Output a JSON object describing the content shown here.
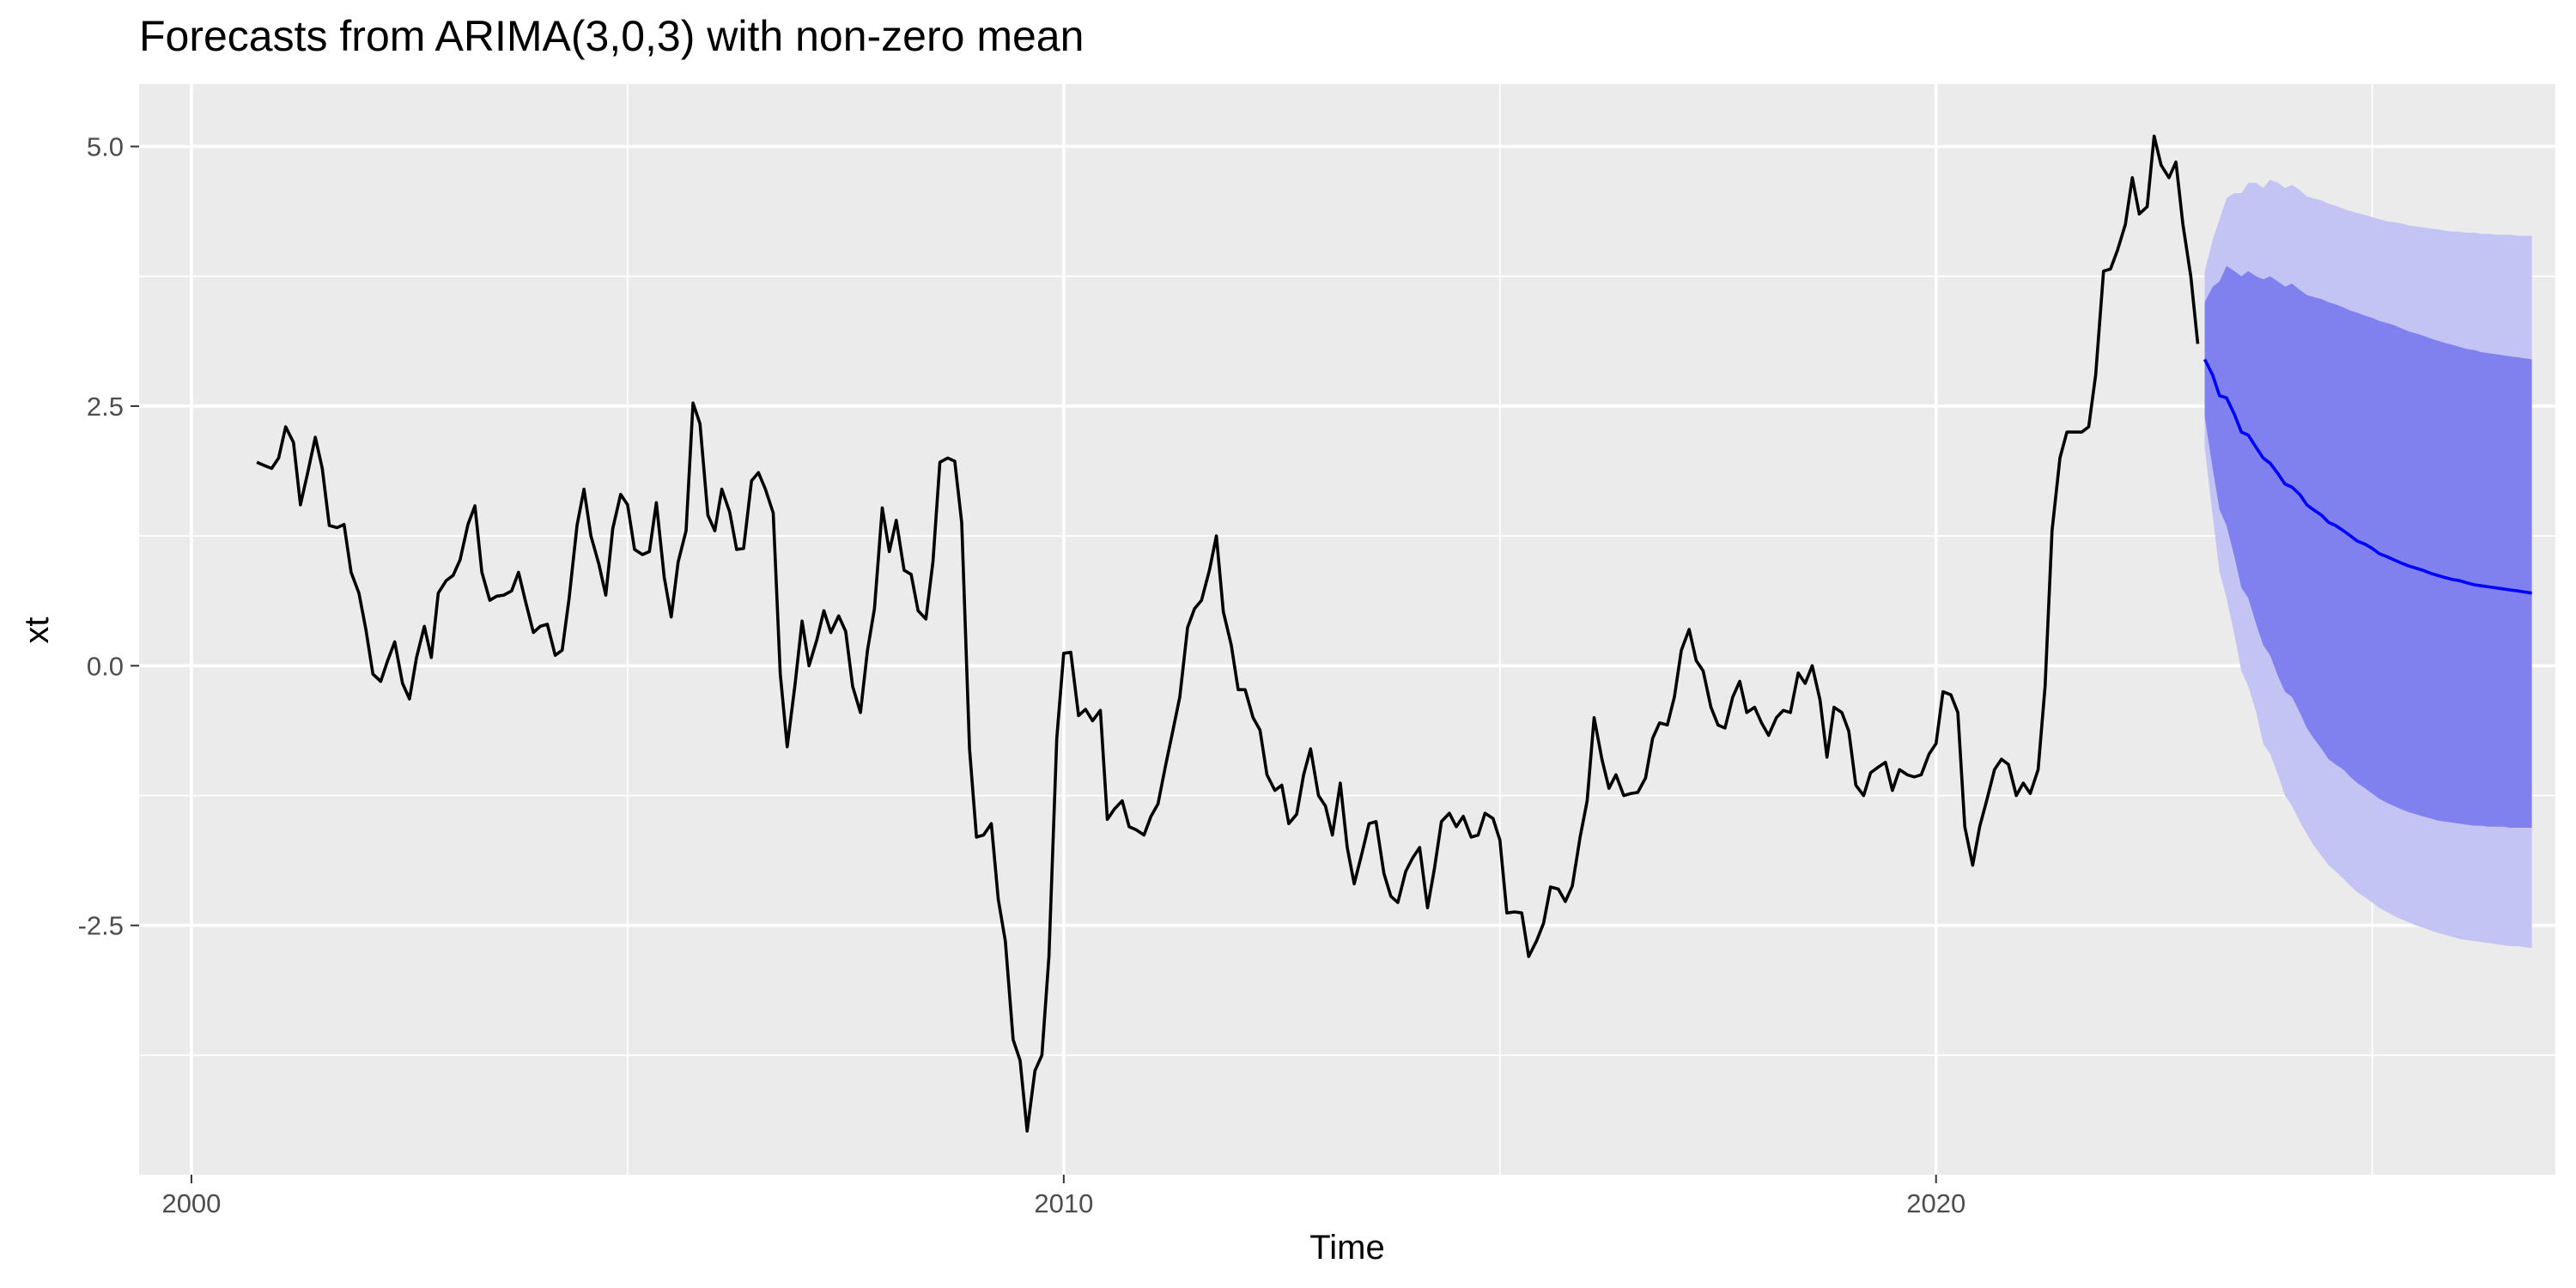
{
  "chart_data": {
    "type": "line",
    "title": "Forecasts from ARIMA(3,0,3) with non-zero mean",
    "xlabel": "Time",
    "ylabel": "xt",
    "xlim": [
      1999.4,
      2027.1
    ],
    "ylim": [
      -4.9,
      5.6
    ],
    "x_ticks": [
      2000,
      2010,
      2020
    ],
    "x_tick_labels": [
      "2000",
      "2010",
      "2020"
    ],
    "y_ticks": [
      -2.5,
      0.0,
      2.5,
      5.0
    ],
    "y_tick_labels": [
      "-2.5",
      "0.0",
      "2.5",
      "5.0"
    ],
    "grid": true,
    "legend": "none",
    "colors": {
      "panel_background": "#ebebeb",
      "grid": "#ffffff",
      "series_line": "#000000",
      "forecast_line": "#0000ff",
      "band_80": "#8080ee",
      "band_95": "#c4c4f4"
    },
    "series": [
      {
        "x": [
          2000.75,
          2000.83,
          2000.92,
          2001.0,
          2001.08,
          2001.17,
          2001.25,
          2001.33,
          2001.42,
          2001.5,
          2001.58,
          2001.67,
          2001.75,
          2001.83,
          2001.92,
          2002.0,
          2002.08,
          2002.17,
          2002.25,
          2002.33,
          2002.42,
          2002.5,
          2002.58,
          2002.67,
          2002.75,
          2002.83,
          2002.92,
          2003.0,
          2003.08,
          2003.17,
          2003.25,
          2003.33,
          2003.42,
          2003.5,
          2003.58,
          2003.67,
          2003.75,
          2003.83,
          2003.92,
          2004.0,
          2004.08,
          2004.17,
          2004.25,
          2004.33,
          2004.42,
          2004.5,
          2004.58,
          2004.67,
          2004.75,
          2004.83,
          2004.92,
          2005.0,
          2005.08,
          2005.17,
          2005.25,
          2005.33,
          2005.42,
          2005.5,
          2005.58,
          2005.67,
          2005.75,
          2005.83,
          2005.92,
          2006.0,
          2006.08,
          2006.17,
          2006.25,
          2006.33,
          2006.42,
          2006.5,
          2006.58,
          2006.67,
          2006.75,
          2006.83,
          2006.92,
          2007.0,
          2007.08,
          2007.17,
          2007.25,
          2007.33,
          2007.42,
          2007.5,
          2007.58,
          2007.67,
          2007.75,
          2007.83,
          2007.92,
          2008.0,
          2008.08,
          2008.17,
          2008.25,
          2008.33,
          2008.42,
          2008.5,
          2008.58,
          2008.67,
          2008.75,
          2008.83,
          2008.92,
          2009.0,
          2009.08,
          2009.17,
          2009.25,
          2009.33,
          2009.42,
          2009.5,
          2009.58,
          2009.67,
          2009.75,
          2009.83,
          2009.92,
          2010.0,
          2010.08,
          2010.17,
          2010.25,
          2010.33,
          2010.42,
          2010.5,
          2010.58,
          2010.67,
          2010.75,
          2010.83,
          2010.92,
          2011.0,
          2011.08,
          2011.17,
          2011.25,
          2011.33,
          2011.42,
          2011.5,
          2011.58,
          2011.67,
          2011.75,
          2011.83,
          2011.92,
          2012.0,
          2012.08,
          2012.17,
          2012.25,
          2012.33,
          2012.42,
          2012.5,
          2012.58,
          2012.67,
          2012.75,
          2012.83,
          2012.92,
          2013.0,
          2013.08,
          2013.17,
          2013.25,
          2013.33,
          2013.42,
          2013.5,
          2013.58,
          2013.67,
          2013.75,
          2013.83,
          2013.92,
          2014.0,
          2014.08,
          2014.17,
          2014.25,
          2014.33,
          2014.42,
          2014.5,
          2014.58,
          2014.67,
          2014.75,
          2014.83,
          2014.92,
          2015.0,
          2015.08,
          2015.17,
          2015.25,
          2015.33,
          2015.42,
          2015.5,
          2015.58,
          2015.67,
          2015.75,
          2015.83,
          2015.92,
          2016.0,
          2016.08,
          2016.17,
          2016.25,
          2016.33,
          2016.42,
          2016.5,
          2016.58,
          2016.67,
          2016.75,
          2016.83,
          2016.92,
          2017.0,
          2017.08,
          2017.17,
          2017.25,
          2017.33,
          2017.42,
          2017.5,
          2017.58,
          2017.67,
          2017.75,
          2017.83,
          2017.92,
          2018.0,
          2018.08,
          2018.17,
          2018.25,
          2018.33,
          2018.42,
          2018.5,
          2018.58,
          2018.67,
          2018.75,
          2018.83,
          2018.92,
          2019.0,
          2019.08,
          2019.17,
          2019.25,
          2019.33,
          2019.42,
          2019.5,
          2019.58,
          2019.67,
          2019.75,
          2019.83,
          2019.92,
          2020.0,
          2020.08,
          2020.17,
          2020.25,
          2020.33,
          2020.42,
          2020.5,
          2020.58,
          2020.67,
          2020.75,
          2020.83,
          2020.92,
          2021.0,
          2021.08,
          2021.17,
          2021.25,
          2021.33,
          2021.42,
          2021.5,
          2021.58,
          2021.67,
          2021.75,
          2021.83,
          2021.92,
          2022.0,
          2022.08,
          2022.17,
          2022.25,
          2022.33,
          2022.42,
          2022.5,
          2022.58,
          2022.67,
          2022.75,
          2022.83,
          2022.92,
          2023.0
        ],
        "values": [
          1.96,
          1.93,
          1.9,
          2.0,
          2.3,
          2.15,
          1.55,
          1.85,
          2.2,
          1.9,
          1.35,
          1.33,
          1.36,
          0.9,
          0.7,
          0.35,
          -0.08,
          -0.15,
          0.05,
          0.23,
          -0.17,
          -0.32,
          0.08,
          0.38,
          0.08,
          0.7,
          0.82,
          0.87,
          1.02,
          1.36,
          1.54,
          0.9,
          0.63,
          0.67,
          0.68,
          0.72,
          0.9,
          0.62,
          0.32,
          0.38,
          0.4,
          0.1,
          0.15,
          0.65,
          1.35,
          1.7,
          1.25,
          0.98,
          0.68,
          1.32,
          1.65,
          1.55,
          1.12,
          1.07,
          1.1,
          1.57,
          0.85,
          0.47,
          1.0,
          1.3,
          2.53,
          2.33,
          1.45,
          1.3,
          1.7,
          1.48,
          1.12,
          1.13,
          1.78,
          1.86,
          1.7,
          1.47,
          -0.08,
          -0.78,
          -0.18,
          0.43,
          0.0,
          0.25,
          0.53,
          0.32,
          0.48,
          0.33,
          -0.2,
          -0.45,
          0.15,
          0.55,
          1.52,
          1.1,
          1.4,
          0.92,
          0.88,
          0.53,
          0.45,
          1.0,
          1.96,
          2.0,
          1.97,
          1.38,
          -0.8,
          -1.65,
          -1.63,
          -1.52,
          -2.25,
          -2.65,
          -3.6,
          -3.8,
          -4.48,
          -3.9,
          -3.75,
          -2.8,
          -0.7,
          0.12,
          0.13,
          -0.48,
          -0.42,
          -0.53,
          -0.43,
          -1.48,
          -1.38,
          -1.3,
          -1.55,
          -1.58,
          -1.63,
          -1.45,
          -1.33,
          -0.95,
          -0.63,
          -0.3,
          0.37,
          0.55,
          0.63,
          0.92,
          1.25,
          0.52,
          0.2,
          -0.23,
          -0.23,
          -0.5,
          -0.62,
          -1.05,
          -1.2,
          -1.15,
          -1.52,
          -1.43,
          -1.05,
          -0.8,
          -1.25,
          -1.35,
          -1.63,
          -1.13,
          -1.75,
          -2.1,
          -1.8,
          -1.52,
          -1.5,
          -2.0,
          -2.22,
          -2.28,
          -1.98,
          -1.85,
          -1.75,
          -2.33,
          -1.95,
          -1.5,
          -1.42,
          -1.55,
          -1.45,
          -1.65,
          -1.63,
          -1.42,
          -1.47,
          -1.68,
          -2.38,
          -2.37,
          -2.38,
          -2.8,
          -2.65,
          -2.48,
          -2.13,
          -2.15,
          -2.27,
          -2.12,
          -1.65,
          -1.3,
          -0.5,
          -0.9,
          -1.18,
          -1.05,
          -1.25,
          -1.23,
          -1.22,
          -1.08,
          -0.7,
          -0.55,
          -0.57,
          -0.3,
          0.15,
          0.35,
          0.05,
          -0.05,
          -0.4,
          -0.57,
          -0.6,
          -0.3,
          -0.15,
          -0.45,
          -0.4,
          -0.55,
          -0.67,
          -0.5,
          -0.43,
          -0.45,
          -0.07,
          -0.17,
          0.0,
          -0.33,
          -0.88,
          -0.4,
          -0.45,
          -0.63,
          -1.15,
          -1.25,
          -1.03,
          -0.98,
          -0.93,
          -1.2,
          -1.0,
          -1.05,
          -1.07,
          -1.05,
          -0.85,
          -0.75,
          -0.25,
          -0.28,
          -0.45,
          -1.55,
          -1.92,
          -1.55,
          -1.3,
          -1.0,
          -0.9,
          -0.95,
          -1.25,
          -1.13,
          -1.23,
          -1.0,
          -0.2,
          1.3,
          2.0,
          2.25,
          2.25,
          2.25,
          2.3,
          2.8,
          3.8,
          3.82,
          4.0,
          4.25,
          4.7,
          4.35,
          4.42,
          5.1,
          4.82,
          4.7,
          4.85,
          4.25,
          3.75,
          3.1
        ]
      },
      {
        "x": [
          2023.08,
          2023.17,
          2023.25,
          2023.33,
          2023.42,
          2023.5,
          2023.58,
          2023.67,
          2023.75,
          2023.83,
          2023.92,
          2024.0,
          2024.08,
          2024.17,
          2024.25,
          2024.33,
          2024.42,
          2024.5,
          2024.58,
          2024.67,
          2024.75,
          2024.83,
          2024.92,
          2025.0,
          2025.08,
          2025.17,
          2025.25,
          2025.33,
          2025.42,
          2025.5,
          2025.58,
          2025.67,
          2025.75,
          2025.83,
          2025.92,
          2026.0,
          2026.08,
          2026.17,
          2026.25,
          2026.33,
          2026.42,
          2026.5,
          2026.58,
          2026.67,
          2026.75,
          2026.83
        ],
        "values": [
          2.95,
          2.8,
          2.6,
          2.58,
          2.42,
          2.25,
          2.22,
          2.1,
          2.0,
          1.95,
          1.85,
          1.75,
          1.72,
          1.65,
          1.55,
          1.5,
          1.45,
          1.38,
          1.35,
          1.3,
          1.25,
          1.2,
          1.17,
          1.13,
          1.08,
          1.05,
          1.02,
          0.99,
          0.96,
          0.94,
          0.92,
          0.89,
          0.87,
          0.85,
          0.83,
          0.82,
          0.8,
          0.78,
          0.77,
          0.76,
          0.75,
          0.74,
          0.73,
          0.72,
          0.71,
          0.7
        ],
        "lo80": [
          2.4,
          1.9,
          1.5,
          1.35,
          1.05,
          0.75,
          0.65,
          0.4,
          0.2,
          0.1,
          -0.1,
          -0.25,
          -0.3,
          -0.45,
          -0.6,
          -0.7,
          -0.8,
          -0.9,
          -0.95,
          -1.0,
          -1.07,
          -1.13,
          -1.18,
          -1.23,
          -1.28,
          -1.32,
          -1.35,
          -1.38,
          -1.41,
          -1.43,
          -1.45,
          -1.47,
          -1.49,
          -1.5,
          -1.51,
          -1.52,
          -1.53,
          -1.54,
          -1.54,
          -1.55,
          -1.55,
          -1.55,
          -1.56,
          -1.56,
          -1.56,
          -1.56
        ],
        "hi80": [
          3.5,
          3.65,
          3.7,
          3.85,
          3.8,
          3.75,
          3.8,
          3.75,
          3.72,
          3.75,
          3.7,
          3.65,
          3.68,
          3.62,
          3.57,
          3.55,
          3.53,
          3.5,
          3.48,
          3.45,
          3.42,
          3.4,
          3.37,
          3.35,
          3.32,
          3.3,
          3.28,
          3.25,
          3.22,
          3.2,
          3.18,
          3.15,
          3.13,
          3.11,
          3.09,
          3.07,
          3.05,
          3.04,
          3.02,
          3.01,
          3.0,
          2.99,
          2.98,
          2.97,
          2.96,
          2.95
        ],
        "lo95": [
          2.1,
          1.45,
          0.9,
          0.65,
          0.3,
          -0.05,
          -0.2,
          -0.45,
          -0.75,
          -0.85,
          -1.05,
          -1.25,
          -1.35,
          -1.5,
          -1.62,
          -1.73,
          -1.83,
          -1.92,
          -1.98,
          -2.05,
          -2.12,
          -2.18,
          -2.23,
          -2.28,
          -2.33,
          -2.37,
          -2.41,
          -2.44,
          -2.47,
          -2.5,
          -2.52,
          -2.55,
          -2.57,
          -2.59,
          -2.61,
          -2.63,
          -2.64,
          -2.65,
          -2.66,
          -2.67,
          -2.68,
          -2.69,
          -2.7,
          -2.7,
          -2.71,
          -2.72
        ],
        "hi95": [
          3.8,
          4.1,
          4.3,
          4.5,
          4.55,
          4.55,
          4.65,
          4.65,
          4.6,
          4.68,
          4.65,
          4.6,
          4.63,
          4.58,
          4.52,
          4.5,
          4.48,
          4.45,
          4.43,
          4.4,
          4.38,
          4.36,
          4.34,
          4.32,
          4.3,
          4.28,
          4.27,
          4.26,
          4.24,
          4.23,
          4.22,
          4.21,
          4.2,
          4.19,
          4.18,
          4.18,
          4.17,
          4.17,
          4.16,
          4.16,
          4.15,
          4.15,
          4.15,
          4.14,
          4.14,
          4.14
        ]
      }
    ]
  }
}
